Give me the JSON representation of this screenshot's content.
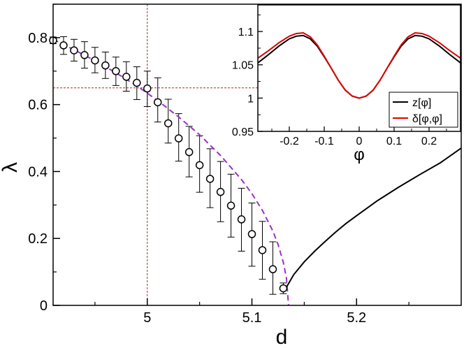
{
  "chart_data": [
    {
      "type": "scatter",
      "xlabel": "d",
      "ylabel": "λ",
      "xlim": [
        4.91,
        5.3
      ],
      "ylim": [
        0,
        0.9
      ],
      "x_ticks": [
        5,
        5.1,
        5.2
      ],
      "x_tick_labels": [
        "5",
        "5.1",
        "5.2"
      ],
      "y_ticks": [
        0,
        0.2,
        0.4,
        0.6,
        0.8
      ],
      "y_tick_labels": [
        "0",
        "0.2",
        "0.4",
        "0.6",
        "0.8"
      ],
      "grid": false,
      "reference_lines": {
        "x": 5.0,
        "y": 0.65,
        "color": "#b22222"
      },
      "series": [
        {
          "style": "open-circle-with-error-bars",
          "color": "#000000",
          "x": [
            4.91,
            4.92,
            4.93,
            4.94,
            4.95,
            4.96,
            4.97,
            4.98,
            4.99,
            5.0,
            5.01,
            5.02,
            5.03,
            5.04,
            5.05,
            5.06,
            5.07,
            5.08,
            5.09,
            5.1,
            5.11,
            5.12,
            5.13
          ],
          "y": [
            0.792,
            0.777,
            0.762,
            0.748,
            0.732,
            0.717,
            0.7,
            0.683,
            0.665,
            0.648,
            0.607,
            0.544,
            0.499,
            0.458,
            0.419,
            0.378,
            0.339,
            0.298,
            0.257,
            0.213,
            0.165,
            0.108,
            0.051
          ],
          "y_lower": [
            0.782,
            0.75,
            0.73,
            0.709,
            0.695,
            0.678,
            0.657,
            0.64,
            0.615,
            0.594,
            0.548,
            0.485,
            0.431,
            0.384,
            0.338,
            0.292,
            0.25,
            0.204,
            0.162,
            0.117,
            0.078,
            0.033,
            0.035
          ],
          "y_upper": [
            0.802,
            0.803,
            0.795,
            0.788,
            0.771,
            0.757,
            0.742,
            0.728,
            0.713,
            0.7,
            0.68,
            0.616,
            0.573,
            0.535,
            0.507,
            0.468,
            0.43,
            0.392,
            0.35,
            0.306,
            0.251,
            0.19,
            0.067
          ]
        },
        {
          "style": "dashed-line",
          "color": "#9b30c8",
          "x": [
            4.91,
            4.93,
            4.95,
            4.97,
            4.99,
            5.01,
            5.03,
            5.05,
            5.07,
            5.09,
            5.1,
            5.11,
            5.12,
            5.125,
            5.13,
            5.133,
            5.135
          ],
          "y": [
            0.795,
            0.764,
            0.731,
            0.695,
            0.656,
            0.612,
            0.563,
            0.51,
            0.448,
            0.376,
            0.334,
            0.284,
            0.222,
            0.182,
            0.129,
            0.082,
            0.0
          ]
        },
        {
          "style": "solid-line",
          "color": "#000000",
          "x": [
            5.132,
            5.135,
            5.14,
            5.15,
            5.16,
            5.17,
            5.18,
            5.19,
            5.2,
            5.22,
            5.24,
            5.26,
            5.28,
            5.3
          ],
          "y": [
            0.05,
            0.065,
            0.092,
            0.13,
            0.162,
            0.191,
            0.219,
            0.245,
            0.268,
            0.313,
            0.353,
            0.39,
            0.426,
            0.47
          ]
        }
      ]
    },
    {
      "type": "line",
      "xlabel": "φ",
      "ylabel": "",
      "xlim": [
        -0.29,
        0.29
      ],
      "ylim": [
        0.95,
        1.14
      ],
      "x_ticks": [
        -0.2,
        -0.1,
        0,
        0.1,
        0.2
      ],
      "x_tick_labels": [
        "-0.2",
        "-0.1",
        "0",
        "0.1",
        "0.2"
      ],
      "y_ticks": [
        0.95,
        1,
        1.05,
        1.1
      ],
      "y_tick_labels": [
        "0.95",
        "1",
        "1.05",
        "1.1"
      ],
      "grid": false,
      "legend_position": "bottom-right",
      "series": [
        {
          "name": "z[φ]",
          "color": "#000000",
          "x": [
            -0.29,
            -0.26,
            -0.23,
            -0.2,
            -0.18,
            -0.16,
            -0.14,
            -0.12,
            -0.1,
            -0.08,
            -0.06,
            -0.04,
            -0.02,
            0,
            0.02,
            0.04,
            0.06,
            0.08,
            0.1,
            0.12,
            0.14,
            0.16,
            0.18,
            0.2,
            0.23,
            0.26,
            0.29
          ],
          "y": [
            1.053,
            1.065,
            1.078,
            1.089,
            1.093,
            1.094,
            1.089,
            1.078,
            1.062,
            1.045,
            1.027,
            1.012,
            1.003,
            1.0,
            1.003,
            1.012,
            1.027,
            1.045,
            1.062,
            1.078,
            1.089,
            1.094,
            1.093,
            1.089,
            1.078,
            1.065,
            1.053
          ]
        },
        {
          "name": "δ[φ,φ]",
          "color": "#e00000",
          "x": [
            -0.29,
            -0.26,
            -0.23,
            -0.2,
            -0.18,
            -0.16,
            -0.14,
            -0.12,
            -0.1,
            -0.08,
            -0.06,
            -0.04,
            -0.02,
            0,
            0.02,
            0.04,
            0.06,
            0.08,
            0.1,
            0.12,
            0.14,
            0.16,
            0.18,
            0.2,
            0.23,
            0.26,
            0.29
          ],
          "y": [
            1.06,
            1.071,
            1.083,
            1.093,
            1.097,
            1.098,
            1.092,
            1.08,
            1.063,
            1.045,
            1.027,
            1.012,
            1.003,
            1.0,
            1.003,
            1.012,
            1.027,
            1.045,
            1.063,
            1.08,
            1.092,
            1.098,
            1.097,
            1.093,
            1.083,
            1.071,
            1.06
          ]
        }
      ]
    }
  ]
}
